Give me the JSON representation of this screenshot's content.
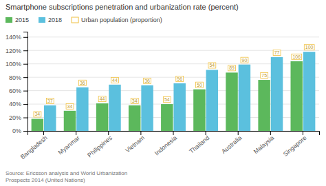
{
  "chart_data": {
    "type": "bar",
    "title": "Smartphone subscriptions penetration and urbanization rate (percent)",
    "categories": [
      "Bangladesh",
      "Myanmar",
      "Philippines",
      "Vietnam",
      "Indonesia",
      "Thailand",
      "Australia",
      "Malaysia",
      "Singapore"
    ],
    "series": [
      {
        "name": "2015",
        "color": "#5cb85c",
        "values": [
          18,
          30,
          41,
          38,
          40,
          62,
          87,
          76,
          104
        ],
        "urban": [
          34,
          34,
          44,
          34,
          54,
          50,
          89,
          75,
          106
        ]
      },
      {
        "name": "2018",
        "color": "#5bc0de",
        "values": [
          38,
          65,
          69,
          68,
          71,
          91,
          99,
          110,
          118
        ],
        "urban": [
          37,
          36,
          44,
          36,
          56,
          54,
          90,
          77,
          100
        ]
      }
    ],
    "urban": {
      "name": "Urban population (proportion)",
      "color": "#f0c040"
    },
    "ylim": [
      0,
      148
    ],
    "yticks": [
      {
        "value": 0,
        "label": "0%"
      },
      {
        "value": 20,
        "label": "20%"
      },
      {
        "value": 40,
        "label": "40%"
      },
      {
        "value": 60,
        "label": "60%"
      },
      {
        "value": 80,
        "label": "80%"
      },
      {
        "value": 100,
        "label": "100%"
      },
      {
        "value": 120,
        "label": "120%"
      },
      {
        "value": 140,
        "label": "140%"
      }
    ],
    "grid": true,
    "legend": "upper left",
    "source": "Source: Ericsson analysis and World Urbanization\nProspects 2014 (United Nations)"
  }
}
